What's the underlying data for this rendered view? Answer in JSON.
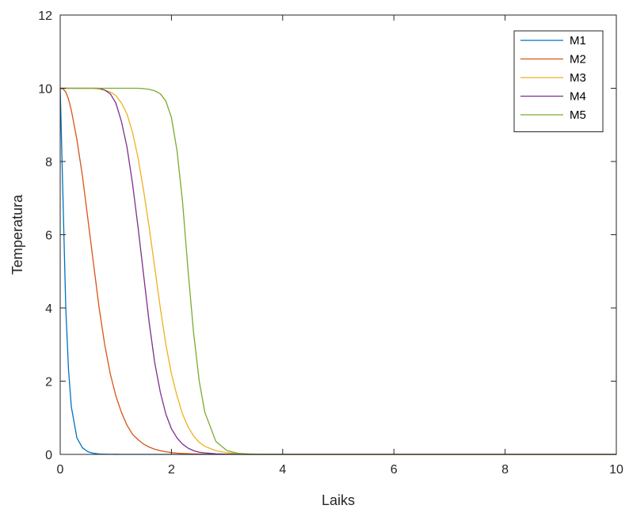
{
  "chart_data": {
    "type": "line",
    "title": "",
    "xlabel": "Laiks",
    "ylabel": "Temperatura",
    "xlim": [
      0,
      10
    ],
    "ylim": [
      0,
      12
    ],
    "xticks": [
      0,
      2,
      4,
      6,
      8,
      10
    ],
    "yticks": [
      0,
      2,
      4,
      6,
      8,
      10,
      12
    ],
    "grid": false,
    "legend_position": "top-right",
    "x": [
      0,
      0.05,
      0.1,
      0.15,
      0.2,
      0.3,
      0.4,
      0.5,
      0.6,
      0.7,
      0.8,
      0.9,
      1.0,
      1.1,
      1.2,
      1.3,
      1.4,
      1.5,
      1.6,
      1.7,
      1.8,
      1.9,
      2.0,
      2.1,
      2.2,
      2.3,
      2.4,
      2.5,
      2.6,
      2.8,
      3.0,
      3.2,
      3.4,
      3.6,
      3.8,
      4.0,
      5.0,
      6.0,
      7.0,
      8.0,
      9.0,
      10.0
    ],
    "series": [
      {
        "name": "M1",
        "color": "#0072BD",
        "values": [
          10,
          7.0,
          4.0,
          2.3,
          1.3,
          0.45,
          0.18,
          0.07,
          0.03,
          0.01,
          0.005,
          0.002,
          0.001,
          0,
          0,
          0,
          0,
          0,
          0,
          0,
          0,
          0,
          0,
          0,
          0,
          0,
          0,
          0,
          0,
          0,
          0,
          0,
          0,
          0,
          0,
          0,
          0,
          0,
          0,
          0,
          0,
          0
        ]
      },
      {
        "name": "M2",
        "color": "#D95319",
        "values": [
          10,
          9.98,
          9.9,
          9.7,
          9.4,
          8.6,
          7.6,
          6.4,
          5.2,
          4.0,
          3.0,
          2.2,
          1.6,
          1.15,
          0.8,
          0.55,
          0.4,
          0.28,
          0.2,
          0.14,
          0.1,
          0.07,
          0.05,
          0.035,
          0.025,
          0.018,
          0.013,
          0.009,
          0.006,
          0.003,
          0.002,
          0.001,
          0,
          0,
          0,
          0,
          0,
          0,
          0,
          0,
          0,
          0
        ]
      },
      {
        "name": "M3",
        "color": "#EDB120",
        "values": [
          10,
          10,
          10,
          10,
          10,
          10,
          10,
          10,
          10,
          9.98,
          9.95,
          9.9,
          9.8,
          9.6,
          9.3,
          8.8,
          8.1,
          7.2,
          6.2,
          5.1,
          4.0,
          3.0,
          2.2,
          1.6,
          1.1,
          0.75,
          0.5,
          0.33,
          0.22,
          0.1,
          0.045,
          0.02,
          0.01,
          0.004,
          0.002,
          0,
          0,
          0,
          0,
          0,
          0,
          0
        ]
      },
      {
        "name": "M4",
        "color": "#7E2F8E",
        "values": [
          10,
          10,
          10,
          10,
          10,
          10,
          10,
          10,
          10,
          10,
          9.95,
          9.85,
          9.6,
          9.1,
          8.4,
          7.4,
          6.2,
          4.9,
          3.6,
          2.5,
          1.7,
          1.1,
          0.7,
          0.45,
          0.28,
          0.17,
          0.1,
          0.06,
          0.04,
          0.015,
          0.006,
          0.002,
          0.001,
          0,
          0,
          0,
          0,
          0,
          0,
          0,
          0,
          0
        ]
      },
      {
        "name": "M5",
        "color": "#77AC30",
        "values": [
          10,
          10,
          10,
          10,
          10,
          10,
          10,
          10,
          10,
          10,
          10,
          10,
          10,
          10,
          10,
          10,
          10,
          9.99,
          9.97,
          9.93,
          9.85,
          9.65,
          9.2,
          8.3,
          6.9,
          5.0,
          3.3,
          2.0,
          1.15,
          0.35,
          0.1,
          0.03,
          0.01,
          0.003,
          0.001,
          0,
          0,
          0,
          0,
          0,
          0,
          0
        ]
      }
    ]
  }
}
